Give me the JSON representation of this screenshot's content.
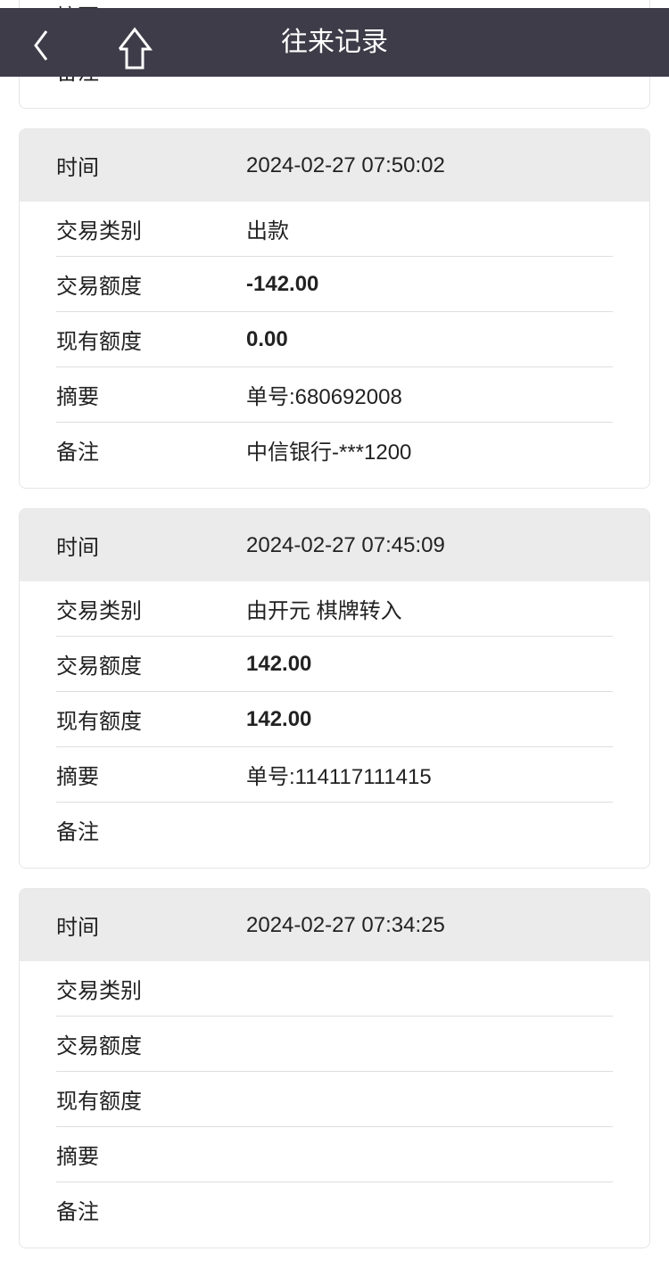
{
  "header": {
    "title": "往来记录",
    "back_icon": "chevron-left-icon",
    "home_icon": "home-icon"
  },
  "labels": {
    "time": "时间",
    "type": "交易类别",
    "amount": "交易额度",
    "balance": "现有额度",
    "summary": "摘要",
    "remark": "备注"
  },
  "records": [
    {
      "time": "",
      "type": "",
      "amount": "",
      "balance": "",
      "summary": "",
      "remark": ""
    },
    {
      "time": "2024-02-27 07:50:02",
      "type": "出款",
      "amount": "-142.00",
      "balance": "0.00",
      "summary": "单号:680692008",
      "remark": "中信银行-***1200"
    },
    {
      "time": "2024-02-27 07:45:09",
      "type": "由开元 棋牌转入",
      "amount": "142.00",
      "balance": "142.00",
      "summary": "单号:114117111415",
      "remark": ""
    },
    {
      "time": "2024-02-27 07:34:25",
      "type": "",
      "amount": "",
      "balance": "",
      "summary": "",
      "remark": ""
    }
  ]
}
